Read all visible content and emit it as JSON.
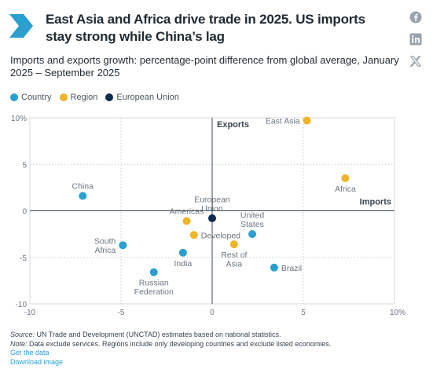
{
  "header": {
    "title": "East Asia and Africa drive trade in 2025. US imports stay strong while China’s lag",
    "social": [
      "facebook-icon",
      "linkedin-icon",
      "x-icon"
    ]
  },
  "subtitle": "Imports and exports growth: percentage-point difference from global average, January 2025 – September 2025",
  "legend": [
    {
      "label": "Country",
      "color": "#2a9fd0"
    },
    {
      "label": "Region",
      "color": "#f0b429"
    },
    {
      "label": "European Union",
      "color": "#0d2b4e"
    }
  ],
  "chart_data": {
    "type": "scatter",
    "title": "",
    "xlabel": "Imports",
    "ylabel": "Exports",
    "xlim": [
      -10,
      10
    ],
    "ylim": [
      -10,
      10
    ],
    "xticks": [
      "-10",
      "-5",
      "0",
      "5",
      "10%"
    ],
    "yticks": [
      "10%",
      "5",
      "0",
      "-5",
      "-10"
    ],
    "grid": true,
    "legend_position": "top-left",
    "points": [
      {
        "label": "China",
        "lines": [
          "China"
        ],
        "x": -7.1,
        "y": 1.6,
        "group": "Country",
        "label_pos": "above"
      },
      {
        "label": "South Africa",
        "lines": [
          "South",
          "Africa"
        ],
        "x": -4.9,
        "y": -3.7,
        "group": "Country",
        "label_pos": "left"
      },
      {
        "label": "Russian Federation",
        "lines": [
          "Russian",
          "Federation"
        ],
        "x": -3.2,
        "y": -6.6,
        "group": "Country",
        "label_pos": "below"
      },
      {
        "label": "India",
        "lines": [
          "India"
        ],
        "x": -1.6,
        "y": -4.5,
        "group": "Country",
        "label_pos": "below"
      },
      {
        "label": "United States",
        "lines": [
          "United",
          "States"
        ],
        "x": 2.2,
        "y": -2.5,
        "group": "Country",
        "label_pos": "above"
      },
      {
        "label": "Brazil",
        "lines": [
          "Brazil"
        ],
        "x": 3.4,
        "y": -6.1,
        "group": "Country",
        "label_pos": "right"
      },
      {
        "label": "East Asia",
        "lines": [
          "East Asia"
        ],
        "x": 5.2,
        "y": 9.7,
        "group": "Region",
        "label_pos": "left"
      },
      {
        "label": "Africa",
        "lines": [
          "Africa"
        ],
        "x": 7.3,
        "y": 3.5,
        "group": "Region",
        "label_pos": "below"
      },
      {
        "label": "Americas",
        "lines": [
          "Americas"
        ],
        "x": -1.4,
        "y": -1.1,
        "group": "Region",
        "label_pos": "above"
      },
      {
        "label": "Developed",
        "lines": [
          "Developed"
        ],
        "x": -1.0,
        "y": -2.6,
        "group": "Region",
        "label_pos": "right"
      },
      {
        "label": "Rest of Asia",
        "lines": [
          "Rest of",
          "Asia"
        ],
        "x": 1.2,
        "y": -3.6,
        "group": "Region",
        "label_pos": "below"
      },
      {
        "label": "European Union",
        "lines": [
          "European",
          "Union"
        ],
        "x": 0.0,
        "y": -0.8,
        "group": "European Union",
        "label_pos": "above"
      }
    ]
  },
  "footer": {
    "source_label": "Source:",
    "source_text": " UN Trade and Development (UNCTAD) estimates based on national statistics.",
    "note_label": "Note:",
    "note_text": " Data exclude services. Regions include only developing countries and exclude listed economies.",
    "link_data": "Get the data",
    "link_download": "Download image"
  }
}
